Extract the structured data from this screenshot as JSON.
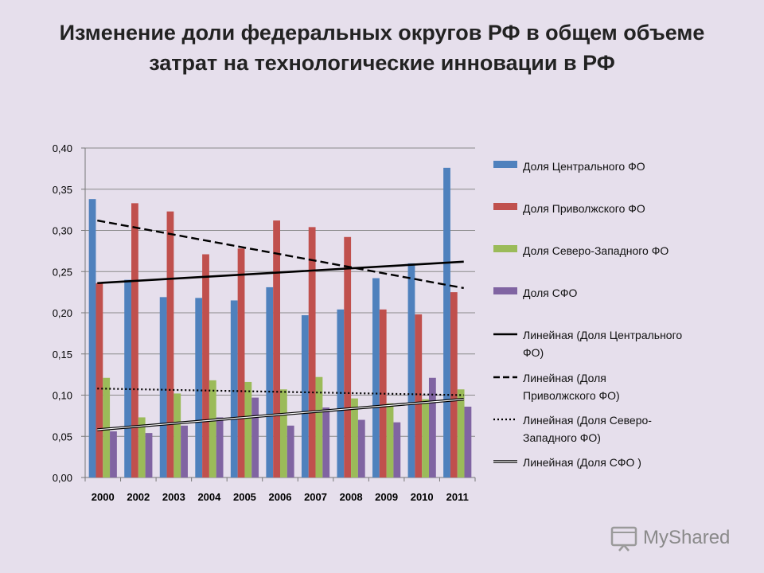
{
  "title": {
    "line1": "Изменение доли федеральных округов РФ в общем объеме",
    "line2": "затрат на технологические инновации в РФ"
  },
  "watermark": "MyShared",
  "chart_data": {
    "type": "bar",
    "categories": [
      "2000",
      "2002",
      "2003",
      "2004",
      "2005",
      "2006",
      "2007",
      "2008",
      "2009",
      "2010",
      "2011"
    ],
    "ylim": [
      0,
      0.4
    ],
    "yticks": [
      "0,00",
      "0,05",
      "0,10",
      "0,15",
      "0,20",
      "0,25",
      "0,30",
      "0,35",
      "0,40"
    ],
    "series": [
      {
        "name": "Доля Центрального ФО",
        "color": "#4f81bd",
        "values": [
          0.338,
          0.24,
          0.219,
          0.218,
          0.215,
          0.231,
          0.197,
          0.204,
          0.242,
          0.26,
          0.376
        ]
      },
      {
        "name": "Доля Приволжского ФО",
        "color": "#c0504d",
        "values": [
          0.236,
          0.333,
          0.323,
          0.271,
          0.278,
          0.312,
          0.304,
          0.292,
          0.204,
          0.198,
          0.225
        ]
      },
      {
        "name": "Доля Северо-Западного ФО",
        "color": "#9bbb59",
        "values": [
          0.121,
          0.073,
          0.102,
          0.118,
          0.116,
          0.107,
          0.122,
          0.096,
          0.09,
          0.095,
          0.107
        ]
      },
      {
        "name": "Доля СФО",
        "color": "#8064a2",
        "values": [
          0.056,
          0.054,
          0.063,
          0.073,
          0.097,
          0.063,
          0.085,
          0.07,
          0.067,
          0.121,
          0.086
        ]
      }
    ],
    "trendlines": [
      {
        "name": "Линейная (Доля Центрального ФО)",
        "legend_lines": [
          "Линейная (Доля Центрального",
          "ФО)"
        ],
        "style": "solid",
        "start": 0.236,
        "end": 0.262
      },
      {
        "name": "Линейная (Доля Приволжского ФО)",
        "legend_lines": [
          "Линейная (Доля",
          "Приволжского ФО)"
        ],
        "style": "dashed",
        "start": 0.312,
        "end": 0.23
      },
      {
        "name": "Линейная (Доля Северо-Западного ФО)",
        "legend_lines": [
          "Линейная (Доля Северо-",
          "Западного ФО)"
        ],
        "style": "dotted",
        "start": 0.108,
        "end": 0.1
      },
      {
        "name": "Линейная (Доля СФО )",
        "legend_lines": [
          "Линейная (Доля СФО )"
        ],
        "style": "double",
        "start": 0.058,
        "end": 0.095
      }
    ],
    "legend_position": "right"
  }
}
